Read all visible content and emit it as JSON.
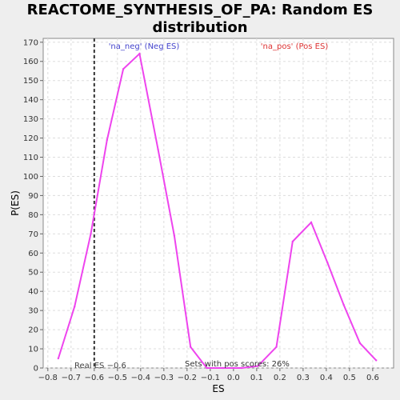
{
  "chart_data": {
    "type": "line",
    "title_line1": "REACTOME_SYNTHESIS_OF_PA: Random ES",
    "title_line2": "distribution",
    "xlabel": "ES",
    "ylabel": "P(ES)",
    "xlim": [
      -0.82,
      0.69
    ],
    "ylim": [
      0,
      172
    ],
    "x_ticks": [
      -0.8,
      -0.7,
      -0.6,
      -0.5,
      -0.4,
      -0.3,
      -0.2,
      -0.1,
      0.0,
      0.1,
      0.2,
      0.3,
      0.4,
      0.5,
      0.6
    ],
    "x_tick_labels": [
      "−0.8",
      "−0.7",
      "−0.6",
      "−0.5",
      "−0.4",
      "−0.3",
      "−0.2",
      "−0.1",
      "0.0",
      "0.1",
      "0.2",
      "0.3",
      "0.4",
      "0.5",
      "0.6"
    ],
    "y_ticks": [
      0,
      10,
      20,
      30,
      40,
      50,
      60,
      70,
      80,
      90,
      100,
      110,
      120,
      130,
      140,
      150,
      160,
      170
    ],
    "grid": true,
    "series": [
      {
        "color": "#ee44ee",
        "x": [
          -0.755,
          -0.685,
          -0.615,
          -0.545,
          -0.475,
          -0.405,
          -0.325,
          -0.255,
          -0.185,
          -0.115,
          -0.045,
          0.035,
          0.105,
          0.185,
          0.255,
          0.335,
          0.405,
          0.475,
          0.545,
          0.615
        ],
        "y": [
          5,
          32,
          70,
          119,
          156,
          164,
          114,
          69,
          11,
          0,
          0,
          0,
          1,
          11,
          66,
          76,
          55,
          33,
          13,
          4
        ]
      }
    ],
    "real_es": -0.6,
    "annotations": {
      "neg_label": "'na_neg' (Neg ES)",
      "neg_color": "#4444cc",
      "pos_label": "'na_pos' (Pos ES)",
      "pos_color": "#dd3333",
      "real_es_label": "Real ES −0.6",
      "pos_scores_label": "Sets with pos scores: 26%"
    }
  }
}
